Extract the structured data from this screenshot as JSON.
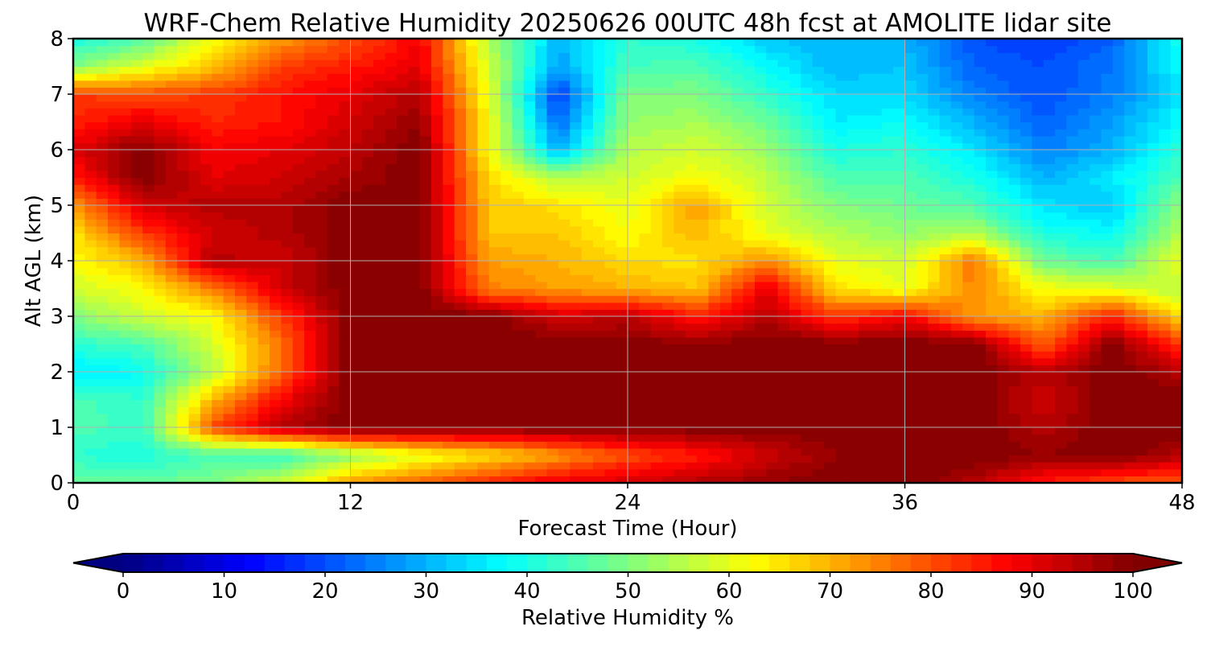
{
  "chart_data": {
    "type": "heatmap",
    "title": "WRF-Chem Relative Humidity 20250626 00UTC 48h fcst at AMOLITE lidar site",
    "xlabel": "Forecast Time (Hour)",
    "ylabel": "Alt AGL (km)",
    "xlim": [
      0,
      48
    ],
    "ylim": [
      0,
      8
    ],
    "x_ticks": [
      "0",
      "12",
      "24",
      "36",
      "48"
    ],
    "y_ticks": [
      "0",
      "1",
      "2",
      "3",
      "4",
      "5",
      "6",
      "7",
      "8"
    ],
    "grid": true,
    "x": [
      0,
      3,
      6,
      9,
      12,
      15,
      18,
      21,
      24,
      27,
      30,
      33,
      36,
      39,
      42,
      45,
      48
    ],
    "y": [
      0,
      0.5,
      1,
      1.5,
      2,
      2.5,
      3,
      3.5,
      4,
      4.5,
      5,
      5.5,
      6,
      6.5,
      7,
      7.5,
      8
    ],
    "values": [
      [
        48,
        47,
        50,
        58,
        72,
        78,
        85,
        90,
        92,
        95,
        98,
        100,
        100,
        95,
        85,
        80,
        78
      ],
      [
        42,
        40,
        45,
        42,
        52,
        60,
        65,
        72,
        80,
        85,
        92,
        98,
        100,
        100,
        98,
        100,
        95
      ],
      [
        45,
        43,
        80,
        95,
        100,
        100,
        100,
        100,
        100,
        100,
        100,
        100,
        100,
        100,
        95,
        100,
        100
      ],
      [
        45,
        42,
        70,
        88,
        100,
        100,
        100,
        100,
        100,
        100,
        100,
        100,
        100,
        100,
        92,
        100,
        100
      ],
      [
        35,
        38,
        55,
        78,
        100,
        100,
        100,
        100,
        100,
        100,
        100,
        100,
        100,
        100,
        95,
        100,
        95
      ],
      [
        42,
        45,
        58,
        76,
        100,
        100,
        100,
        100,
        100,
        98,
        100,
        100,
        100,
        100,
        78,
        100,
        82
      ],
      [
        50,
        58,
        62,
        82,
        100,
        100,
        100,
        92,
        94,
        85,
        95,
        82,
        88,
        72,
        70,
        85,
        65
      ],
      [
        58,
        62,
        75,
        92,
        100,
        100,
        75,
        72,
        70,
        68,
        90,
        66,
        60,
        75,
        62,
        60,
        55
      ],
      [
        62,
        70,
        95,
        92,
        100,
        100,
        72,
        70,
        66,
        65,
        74,
        60,
        58,
        76,
        48,
        44,
        62
      ],
      [
        65,
        82,
        92,
        95,
        100,
        100,
        68,
        68,
        62,
        70,
        60,
        55,
        52,
        55,
        40,
        38,
        55
      ],
      [
        72,
        92,
        95,
        95,
        100,
        100,
        68,
        65,
        60,
        72,
        58,
        50,
        48,
        45,
        35,
        32,
        52
      ],
      [
        85,
        100,
        90,
        92,
        96,
        100,
        66,
        55,
        58,
        62,
        56,
        45,
        45,
        40,
        30,
        36,
        45
      ],
      [
        90,
        100,
        88,
        90,
        94,
        100,
        62,
        30,
        55,
        58,
        52,
        40,
        42,
        35,
        25,
        30,
        42
      ],
      [
        84,
        90,
        84,
        86,
        92,
        98,
        62,
        22,
        52,
        54,
        48,
        36,
        38,
        30,
        22,
        28,
        38
      ],
      [
        82,
        80,
        82,
        86,
        90,
        95,
        60,
        18,
        50,
        50,
        42,
        34,
        34,
        25,
        20,
        25,
        35
      ],
      [
        50,
        60,
        68,
        82,
        85,
        90,
        58,
        28,
        44,
        45,
        38,
        30,
        32,
        22,
        20,
        24,
        38
      ],
      [
        40,
        45,
        62,
        72,
        80,
        88,
        55,
        30,
        42,
        40,
        32,
        30,
        30,
        20,
        18,
        22,
        40
      ]
    ],
    "colorbar": {
      "label": "Relative Humidity %",
      "range": [
        0,
        100
      ],
      "ticks": [
        "0",
        "10",
        "20",
        "30",
        "40",
        "50",
        "60",
        "70",
        "80",
        "90",
        "100"
      ],
      "extend": "both",
      "colormap": "jet"
    }
  }
}
